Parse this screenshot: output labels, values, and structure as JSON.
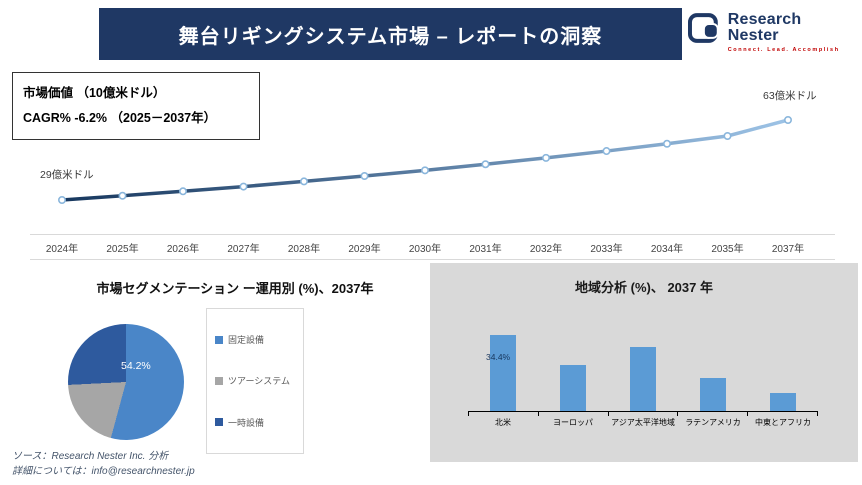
{
  "header": {
    "title": "舞台リギングシステム市場 – レポートの洞察",
    "logo": {
      "text": "Research Nester",
      "tagline": "Connect. Lead. Accomplish"
    }
  },
  "info_box": {
    "line1": "市場価値 （10億米ドル）",
    "line2": "CAGR% -6.2% （2025－2037年）"
  },
  "colors": {
    "header_bg": "#1f3864",
    "line_gradient_start": "#17375e",
    "line_gradient_end": "#9dc3e6",
    "bar_fill": "#5b9bd5",
    "panel_bg": "#d9d9d9",
    "tagline_red": "#c00000"
  },
  "chart_data": [
    {
      "type": "line",
      "title": "市場価値 （10億米ドル）",
      "x": [
        "2024年",
        "2025年",
        "2026年",
        "2027年",
        "2028年",
        "2029年",
        "2030年",
        "2031年",
        "2032年",
        "2033年",
        "2034年",
        "2035年",
        "2037年"
      ],
      "values": [
        29,
        30.8,
        32.7,
        34.7,
        36.9,
        39.2,
        41.6,
        44.2,
        46.9,
        49.8,
        52.9,
        56.2,
        63
      ],
      "ylim": [
        29,
        63
      ],
      "start_label": "29億米ドル",
      "end_label": "63億米ドル",
      "grid": false,
      "legend": "none"
    },
    {
      "type": "pie",
      "title": "市場セグメンテーション ー運用別 (%)、2037年",
      "labels": [
        "固定設備",
        "ツアーシステム",
        "一時設備"
      ],
      "values": [
        54.2,
        20.0,
        25.8
      ],
      "colors": [
        "#4a86c8",
        "#a6a6a6",
        "#2e5a9e"
      ],
      "data_label": "54.2%",
      "legend": "right"
    },
    {
      "type": "bar",
      "title": "地域分析 (%)、 2037 年",
      "categories": [
        "北米",
        "ヨーロッパ",
        "アジア太平洋地域",
        "ラテンアメリカ",
        "中東とアフリカ"
      ],
      "values": [
        34.4,
        21,
        29,
        15,
        8
      ],
      "data_label": "34.4%",
      "ylim": [
        0,
        40
      ],
      "grid": false
    }
  ],
  "footer": {
    "line1": "ソース：Research Nester Inc. 分析",
    "line2": "詳細については：info@researchnester.jp"
  }
}
